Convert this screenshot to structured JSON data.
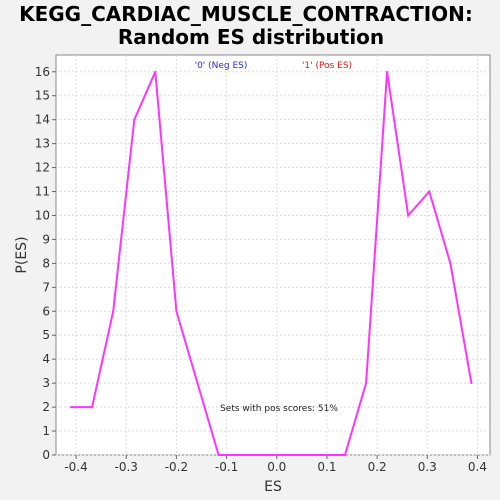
{
  "chart_data": {
    "type": "line",
    "title_line1": "KEGG_CARDIAC_MUSCLE_CONTRACTION:",
    "title_line2": "Random ES distribution",
    "xlabel": "ES",
    "ylabel": "P(ES)",
    "xlim": [
      -0.44,
      0.425
    ],
    "ylim": [
      0,
      16.7
    ],
    "x_ticks": [
      -0.4,
      -0.3,
      -0.2,
      -0.1,
      0.0,
      0.1,
      0.2,
      0.3,
      0.4
    ],
    "x_tick_labels": [
      "-0.4",
      "-0.3",
      "-0.2",
      "-0.1",
      "0.0",
      "0.1",
      "0.2",
      "0.3",
      "0.4"
    ],
    "y_ticks": [
      0,
      1,
      2,
      3,
      4,
      5,
      6,
      7,
      8,
      9,
      10,
      11,
      12,
      13,
      14,
      15,
      16
    ],
    "grid": true,
    "legend": [
      {
        "label": "'0' (Neg ES)",
        "color": "#2b2bd6"
      },
      {
        "label": "'1' (Pos ES)",
        "color": "#e01919"
      }
    ],
    "annotation": "Sets with pos scores: 51%",
    "series": [
      {
        "color": "#ff33ff",
        "x": [
          -0.41,
          -0.368,
          -0.326,
          -0.284,
          -0.242,
          -0.2,
          -0.158,
          -0.116,
          -0.074,
          -0.032,
          0.01,
          0.052,
          0.094,
          0.136,
          0.178,
          0.22,
          0.262,
          0.304,
          0.346,
          0.388
        ],
        "y": [
          2,
          2,
          6,
          14,
          16,
          6,
          3,
          0,
          0,
          0,
          0,
          0,
          0,
          0,
          3,
          16,
          10,
          11,
          8,
          3
        ]
      }
    ]
  }
}
